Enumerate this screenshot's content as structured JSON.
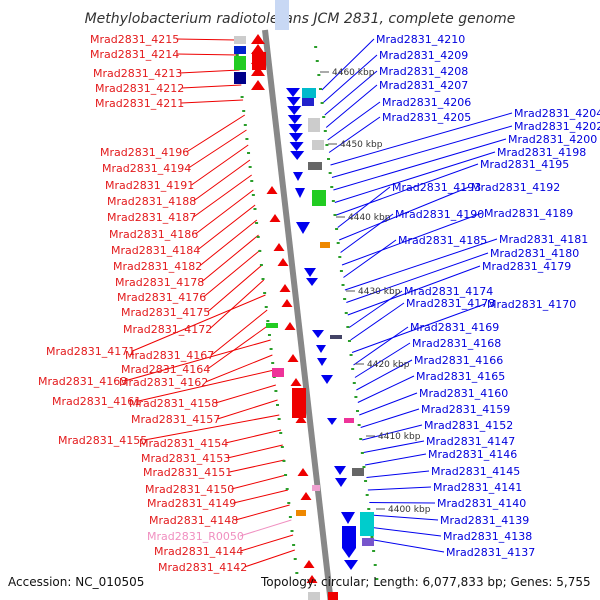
{
  "title": "Methylobacterium radiotolerans JCM 2831, complete genome",
  "accession": "Accession: NC_010505",
  "topology": "Topology: circular; Length: 6,077,833 bp; Genes: 5,755",
  "colors": {
    "forward": "#ee0000",
    "reverse": "#0000ee",
    "left_label": "#e31a1c",
    "right_label": "#0000dd",
    "rna_label": "#f08fc0",
    "backbone": "#888888"
  },
  "kbp_ticks": [
    "4460 kbp",
    "4450 kbp",
    "4440 kbp",
    "4430 kbp",
    "4420 kbp",
    "4410 kbp",
    "4400 kbp"
  ],
  "left_labels": [
    "Mrad2831_4215",
    "Mrad2831_4214",
    "Mrad2831_4213",
    "Mrad2831_4212",
    "Mrad2831_4211",
    "Mrad2831_4196",
    "Mrad2831_4194",
    "Mrad2831_4191",
    "Mrad2831_4188",
    "Mrad2831_4187",
    "Mrad2831_4186",
    "Mrad2831_4184",
    "Mrad2831_4182",
    "Mrad2831_4178",
    "Mrad2831_4176",
    "Mrad2831_4175",
    "Mrad2831_4172",
    "Mrad2831_4171",
    "Mrad2831_4167",
    "Mrad2831_4164",
    "Mrad2831_4163",
    "Mrad2831_4162",
    "Mrad2831_4161",
    "Mrad2831_4158",
    "Mrad2831_4157",
    "Mrad2831_4155",
    "Mrad2831_4154",
    "Mrad2831_4153",
    "Mrad2831_4151",
    "Mrad2831_4150",
    "Mrad2831_4149",
    "Mrad2831_4148",
    "Mrad2831_R0050",
    "Mrad2831_4144",
    "Mrad2831_4142"
  ],
  "right_labels": [
    "Mrad2831_4210",
    "Mrad2831_4209",
    "Mrad2831_4208",
    "Mrad2831_4207",
    "Mrad2831_4206",
    "Mrad2831_4205",
    "Mrad2831_4204",
    "Mrad2831_4202",
    "Mrad2831_4200",
    "Mrad2831_4198",
    "Mrad2831_4195",
    "Mrad2831_4193",
    "Mrad2831_4192",
    "Mrad2831_4190",
    "Mrad2831_4189",
    "Mrad2831_4185",
    "Mrad2831_4181",
    "Mrad2831_4180",
    "Mrad2831_4179",
    "Mrad2831_4174",
    "Mrad2831_4173",
    "Mrad2831_4170",
    "Mrad2831_4169",
    "Mrad2831_4168",
    "Mrad2831_4166",
    "Mrad2831_4165",
    "Mrad2831_4160",
    "Mrad2831_4159",
    "Mrad2831_4152",
    "Mrad2831_4147",
    "Mrad2831_4146",
    "Mrad2831_4145",
    "Mrad2831_4141",
    "Mrad2831_4140",
    "Mrad2831_4139",
    "Mrad2831_4138",
    "Mrad2831_4137"
  ]
}
